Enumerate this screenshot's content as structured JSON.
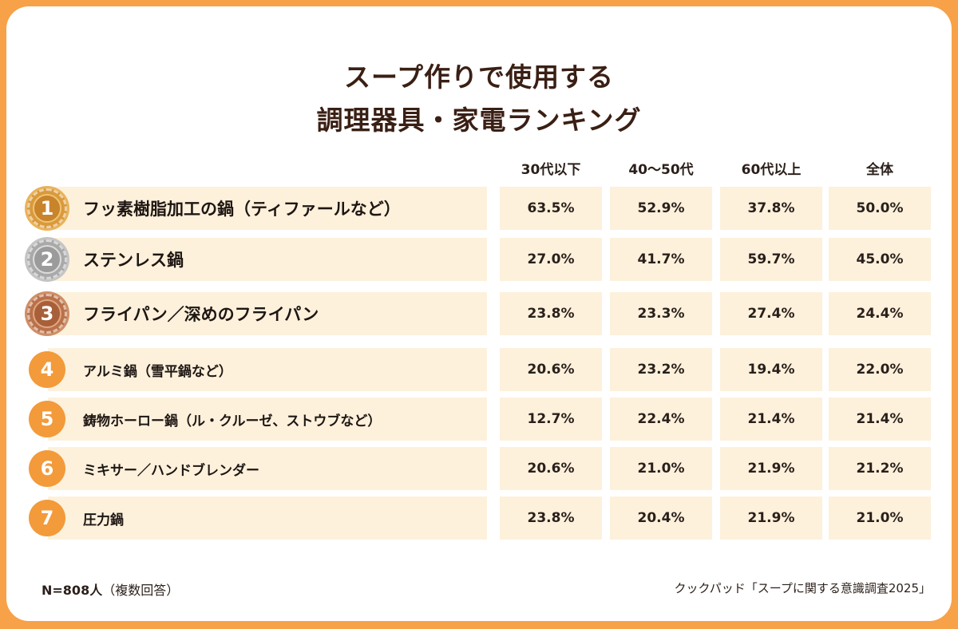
{
  "title": {
    "line1": "スープ作りで使用する",
    "line2": "調理器具・家電ランキング"
  },
  "chart_data": {
    "type": "table",
    "title": "スープ作りで使用する調理器具・家電ランキング",
    "columns": [
      "30代以下",
      "40〜50代",
      "60代以上",
      "全体"
    ],
    "rows": [
      {
        "rank": "1",
        "label": "フッ素樹脂加工の鍋（ティファールなど）",
        "values": [
          "63.5%",
          "52.9%",
          "37.8%",
          "50.0%"
        ]
      },
      {
        "rank": "2",
        "label": "ステンレス鍋",
        "values": [
          "27.0%",
          "41.7%",
          "59.7%",
          "45.0%"
        ]
      },
      {
        "rank": "3",
        "label": "フライパン／深めのフライパン",
        "values": [
          "23.8%",
          "23.3%",
          "27.4%",
          "24.4%"
        ]
      },
      {
        "rank": "4",
        "label": "アルミ鍋（雪平鍋など）",
        "values": [
          "20.6%",
          "23.2%",
          "19.4%",
          "22.0%"
        ]
      },
      {
        "rank": "5",
        "label": "鋳物ホーロー鍋（ル・クルーゼ、ストウブなど）",
        "values": [
          "12.7%",
          "22.4%",
          "21.4%",
          "21.4%"
        ]
      },
      {
        "rank": "6",
        "label": "ミキサー／ハンドブレンダー",
        "values": [
          "20.6%",
          "21.0%",
          "21.9%",
          "21.2%"
        ]
      },
      {
        "rank": "7",
        "label": "圧力鍋",
        "values": [
          "23.8%",
          "20.4%",
          "21.9%",
          "21.0%"
        ]
      }
    ]
  },
  "footer": {
    "sample_bold": "N=808人",
    "sample_note": "（複数回答）",
    "source": "クックパッド「スープに関する意識調査2025」"
  },
  "colors": {
    "frame": "#f7a148",
    "row_bg": "#fdf1dc",
    "rank_badge": "#f39a3a",
    "gold": "#d99a3c",
    "silver": "#a9a9a9",
    "bronze": "#b9714a"
  }
}
